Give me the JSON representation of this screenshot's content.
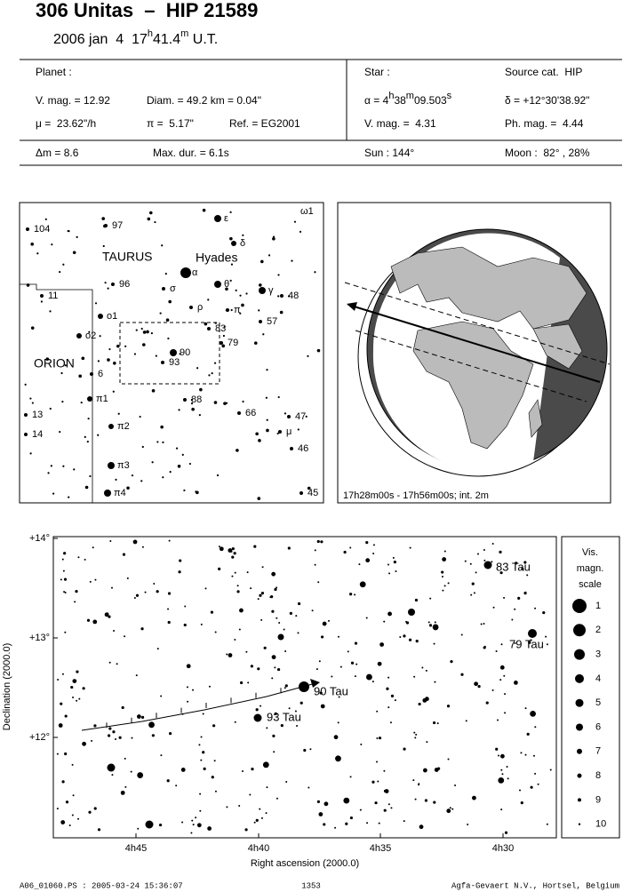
{
  "header": {
    "title": "306 Unitas  –  HIP 21589",
    "date": "2006 jan  4  ",
    "hours": "17",
    "h": "h",
    "minutes": "41.4",
    "m": "m",
    "ut": " U.T."
  },
  "info": {
    "planet": "Planet :",
    "vmag": "V. mag. = 12.92",
    "diam": "Diam. = 49.2 km = 0.04\"",
    "mu": "μ =  23.62\"/h",
    "parallax": "π =  5.17\"",
    "ref": "Ref. = EG2001",
    "star": "Star :",
    "source": "Source cat.  HIP",
    "alpha": {
      "label": "α = ",
      "hours": "4",
      "h": "h",
      "minutes": "38",
      "m": "m",
      "seconds": "09.503",
      "s": "s"
    },
    "delta": "δ = +12°30'38.92\"",
    "star_vmag": "V. mag. =  4.31",
    "ph_mag": "Ph. mag. =  4.44",
    "dmag": "Δm = 8.6",
    "max_dur": "Max. dur. = 6.1s",
    "sun": "Sun : 144°",
    "moon": "Moon :  82° , 28%"
  },
  "finder_chart": {
    "labels": [
      "ω1",
      "104",
      "97",
      "ε",
      "δ",
      "TAURUS",
      "Hyades",
      "α",
      "96",
      "σ",
      "θ",
      "γ",
      "48",
      "11",
      "ο1",
      "ρ",
      "π",
      "57",
      "83",
      "ο2",
      "79",
      "90",
      "93",
      "ORION",
      "6",
      "π1",
      "88",
      "13",
      "66",
      "47",
      "π2",
      "μ",
      "14",
      "46",
      "π3",
      "π4",
      "45"
    ]
  },
  "globe": {
    "caption": "17h28m00s - 17h56m00s; int. 2m"
  },
  "detail_chart": {
    "star_labels": [
      "83 Tau",
      "79 Tau",
      "90 Tau",
      "93 Tau"
    ],
    "yticks": [
      "+14°",
      "+13°",
      "+12°"
    ],
    "xticks": [
      "4h45",
      "4h40",
      "4h35",
      "4h30"
    ],
    "xlabel": "Right ascension (2000.0)",
    "ylabel": "Declination (2000.0)"
  },
  "legend": {
    "title": [
      "Vis.",
      "magn.",
      "scale"
    ],
    "magnitudes": [
      "1",
      "2",
      "3",
      "4",
      "5",
      "6",
      "7",
      "8",
      "9",
      "10"
    ]
  },
  "footer": {
    "file": "A06_01060.PS : 2005-03-24 15:36:07",
    "page": "1353",
    "org": "Agfa-Gevaert N.V., Hortsel, Belgium"
  }
}
